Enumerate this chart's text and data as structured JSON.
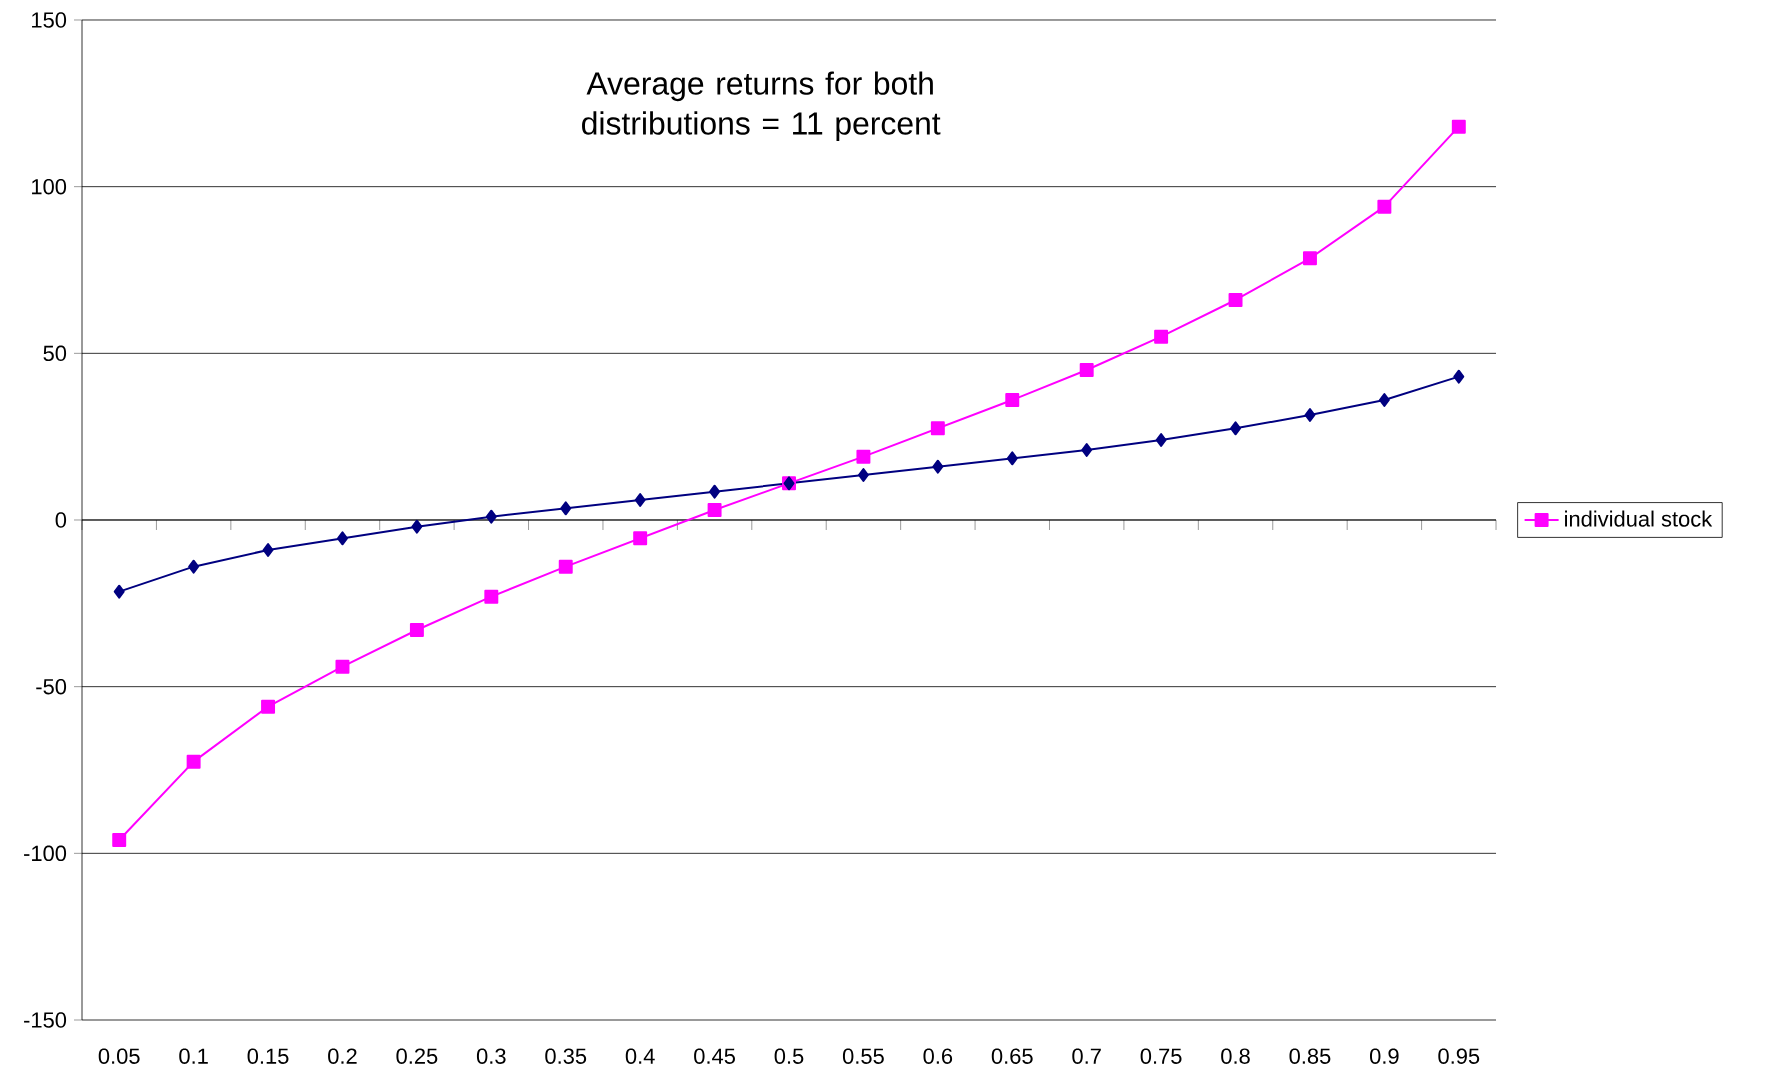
{
  "chart_data": {
    "type": "line",
    "title": "Average returns for both distributions = 11 percent",
    "categories": [
      "0.05",
      "0.1",
      "0.15",
      "0.2",
      "0.25",
      "0.3",
      "0.35",
      "0.4",
      "0.45",
      "0.5",
      "0.55",
      "0.6",
      "0.65",
      "0.7",
      "0.75",
      "0.8",
      "0.85",
      "0.9",
      "0.95"
    ],
    "series": [
      {
        "color": "#000080",
        "marker": "diamond",
        "values": [
          -21.5,
          -14,
          -9,
          -5.5,
          -2,
          1,
          3.5,
          6,
          8.5,
          11,
          13.5,
          16,
          18.5,
          21,
          24,
          27.5,
          31.5,
          36,
          43
        ]
      },
      {
        "name": "individual stock",
        "color": "#ff00ff",
        "marker": "square",
        "values": [
          -96,
          -72.5,
          -56,
          -44,
          -33,
          -23,
          -14,
          -5.5,
          3,
          11,
          19,
          27.5,
          36,
          45,
          55,
          66,
          78.5,
          94,
          118
        ]
      }
    ],
    "ylim": [
      -150,
      150
    ],
    "yticks": [
      -150,
      -100,
      -50,
      0,
      50,
      100,
      150
    ],
    "grid": "y",
    "legend": "right"
  }
}
